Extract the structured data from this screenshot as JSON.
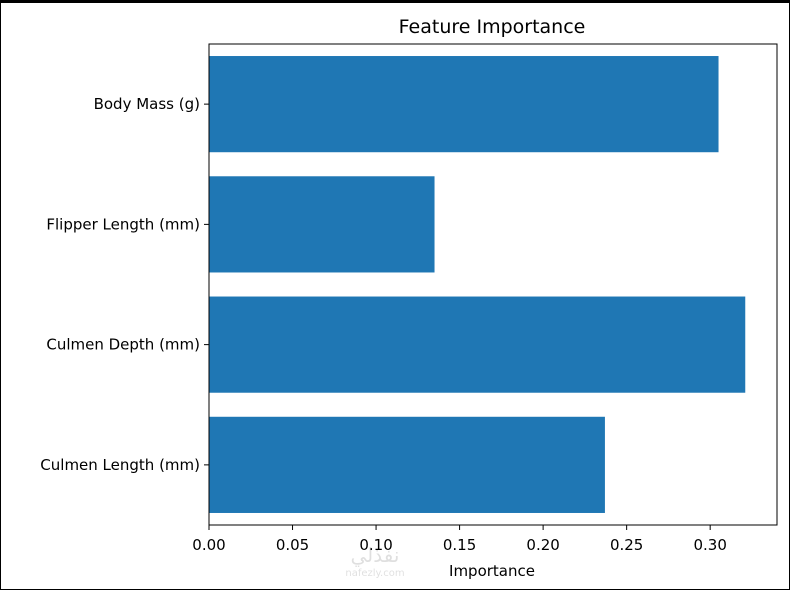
{
  "chart_data": {
    "type": "bar",
    "orientation": "horizontal",
    "title": "Feature Importance",
    "xlabel": "Importance",
    "ylabel": "",
    "categories": [
      "Culmen Length (mm)",
      "Culmen Depth (mm)",
      "Flipper Length (mm)",
      "Body Mass (g)"
    ],
    "values": [
      0.237,
      0.321,
      0.135,
      0.305
    ],
    "xlim": [
      0,
      0.34
    ],
    "xticks": [
      "0.00",
      "0.05",
      "0.10",
      "0.15",
      "0.20",
      "0.25",
      "0.30"
    ],
    "bar_color": "#1f77b4",
    "grid": false,
    "legend": "none"
  },
  "watermark": {
    "text_line1": "نفذلي",
    "text_line2": "nafezly.com"
  }
}
